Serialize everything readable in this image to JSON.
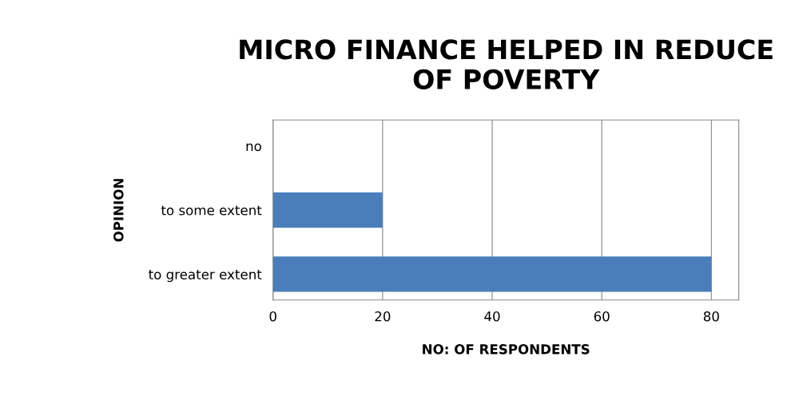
{
  "chart_data": {
    "type": "bar",
    "orientation": "horizontal",
    "title": "MICRO FINANCE HELPED IN REDUCE\nOF POVERTY",
    "xlabel": "NO: OF RESPONDENTS",
    "ylabel": "OPINION",
    "categories": [
      "no",
      "to some extent",
      "to greater extent"
    ],
    "values": [
      0,
      20,
      80
    ],
    "color": "#4a7ebb",
    "xlim": [
      0,
      85
    ],
    "xticks": [
      0,
      20,
      40,
      60,
      80
    ],
    "grid": "x"
  }
}
